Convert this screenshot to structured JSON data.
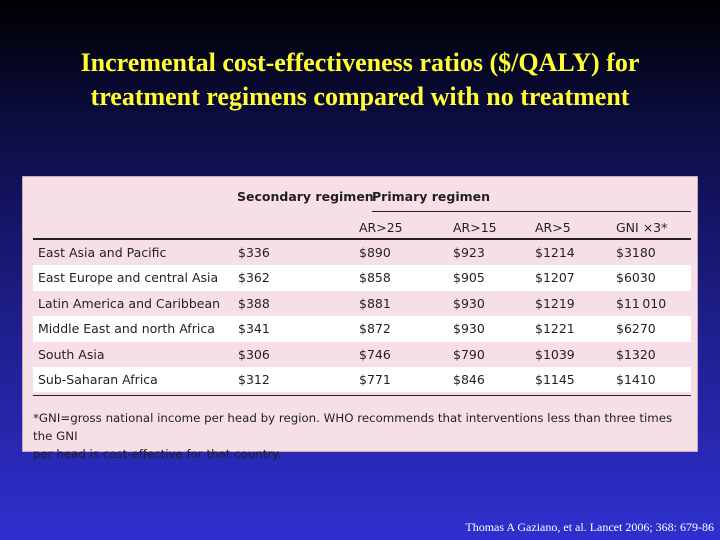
{
  "title": {
    "line1": "Incremental cost-effectiveness ratios ($/QALY) for",
    "line2": "treatment regimens compared with no treatment"
  },
  "table": {
    "group_headers": {
      "secondary": "Secondary regimen",
      "primary": "Primary regimen"
    },
    "sub_headers": [
      "AR>25",
      "AR>15",
      "AR>5",
      "GNI ×3*"
    ],
    "rows": [
      {
        "region": "East Asia and Pacific",
        "secondary": "$336",
        "ar25": "$890",
        "ar15": "$923",
        "ar5": "$1214",
        "gni": "$3180"
      },
      {
        "region": "East Europe and central Asia",
        "secondary": "$362",
        "ar25": "$858",
        "ar15": "$905",
        "ar5": "$1207",
        "gni": "$6030"
      },
      {
        "region": "Latin America and Caribbean",
        "secondary": "$388",
        "ar25": "$881",
        "ar15": "$930",
        "ar5": "$1219",
        "gni": "$11 010"
      },
      {
        "region": "Middle East and north Africa",
        "secondary": "$341",
        "ar25": "$872",
        "ar15": "$930",
        "ar5": "$1221",
        "gni": "$6270"
      },
      {
        "region": "South Asia",
        "secondary": "$306",
        "ar25": "$746",
        "ar15": "$790",
        "ar5": "$1039",
        "gni": "$1320"
      },
      {
        "region": "Sub-Saharan Africa",
        "secondary": "$312",
        "ar25": "$771",
        "ar15": "$846",
        "ar5": "$1145",
        "gni": "$1410"
      }
    ],
    "footnote": {
      "line1": "*GNI=gross national income per head by region. WHO recommends that interventions less than three times the GNI",
      "line2": "per head is cost-effective for that country."
    }
  },
  "citation": "Thomas A Gaziano, et al. Lancet 2006; 368: 679-86"
}
